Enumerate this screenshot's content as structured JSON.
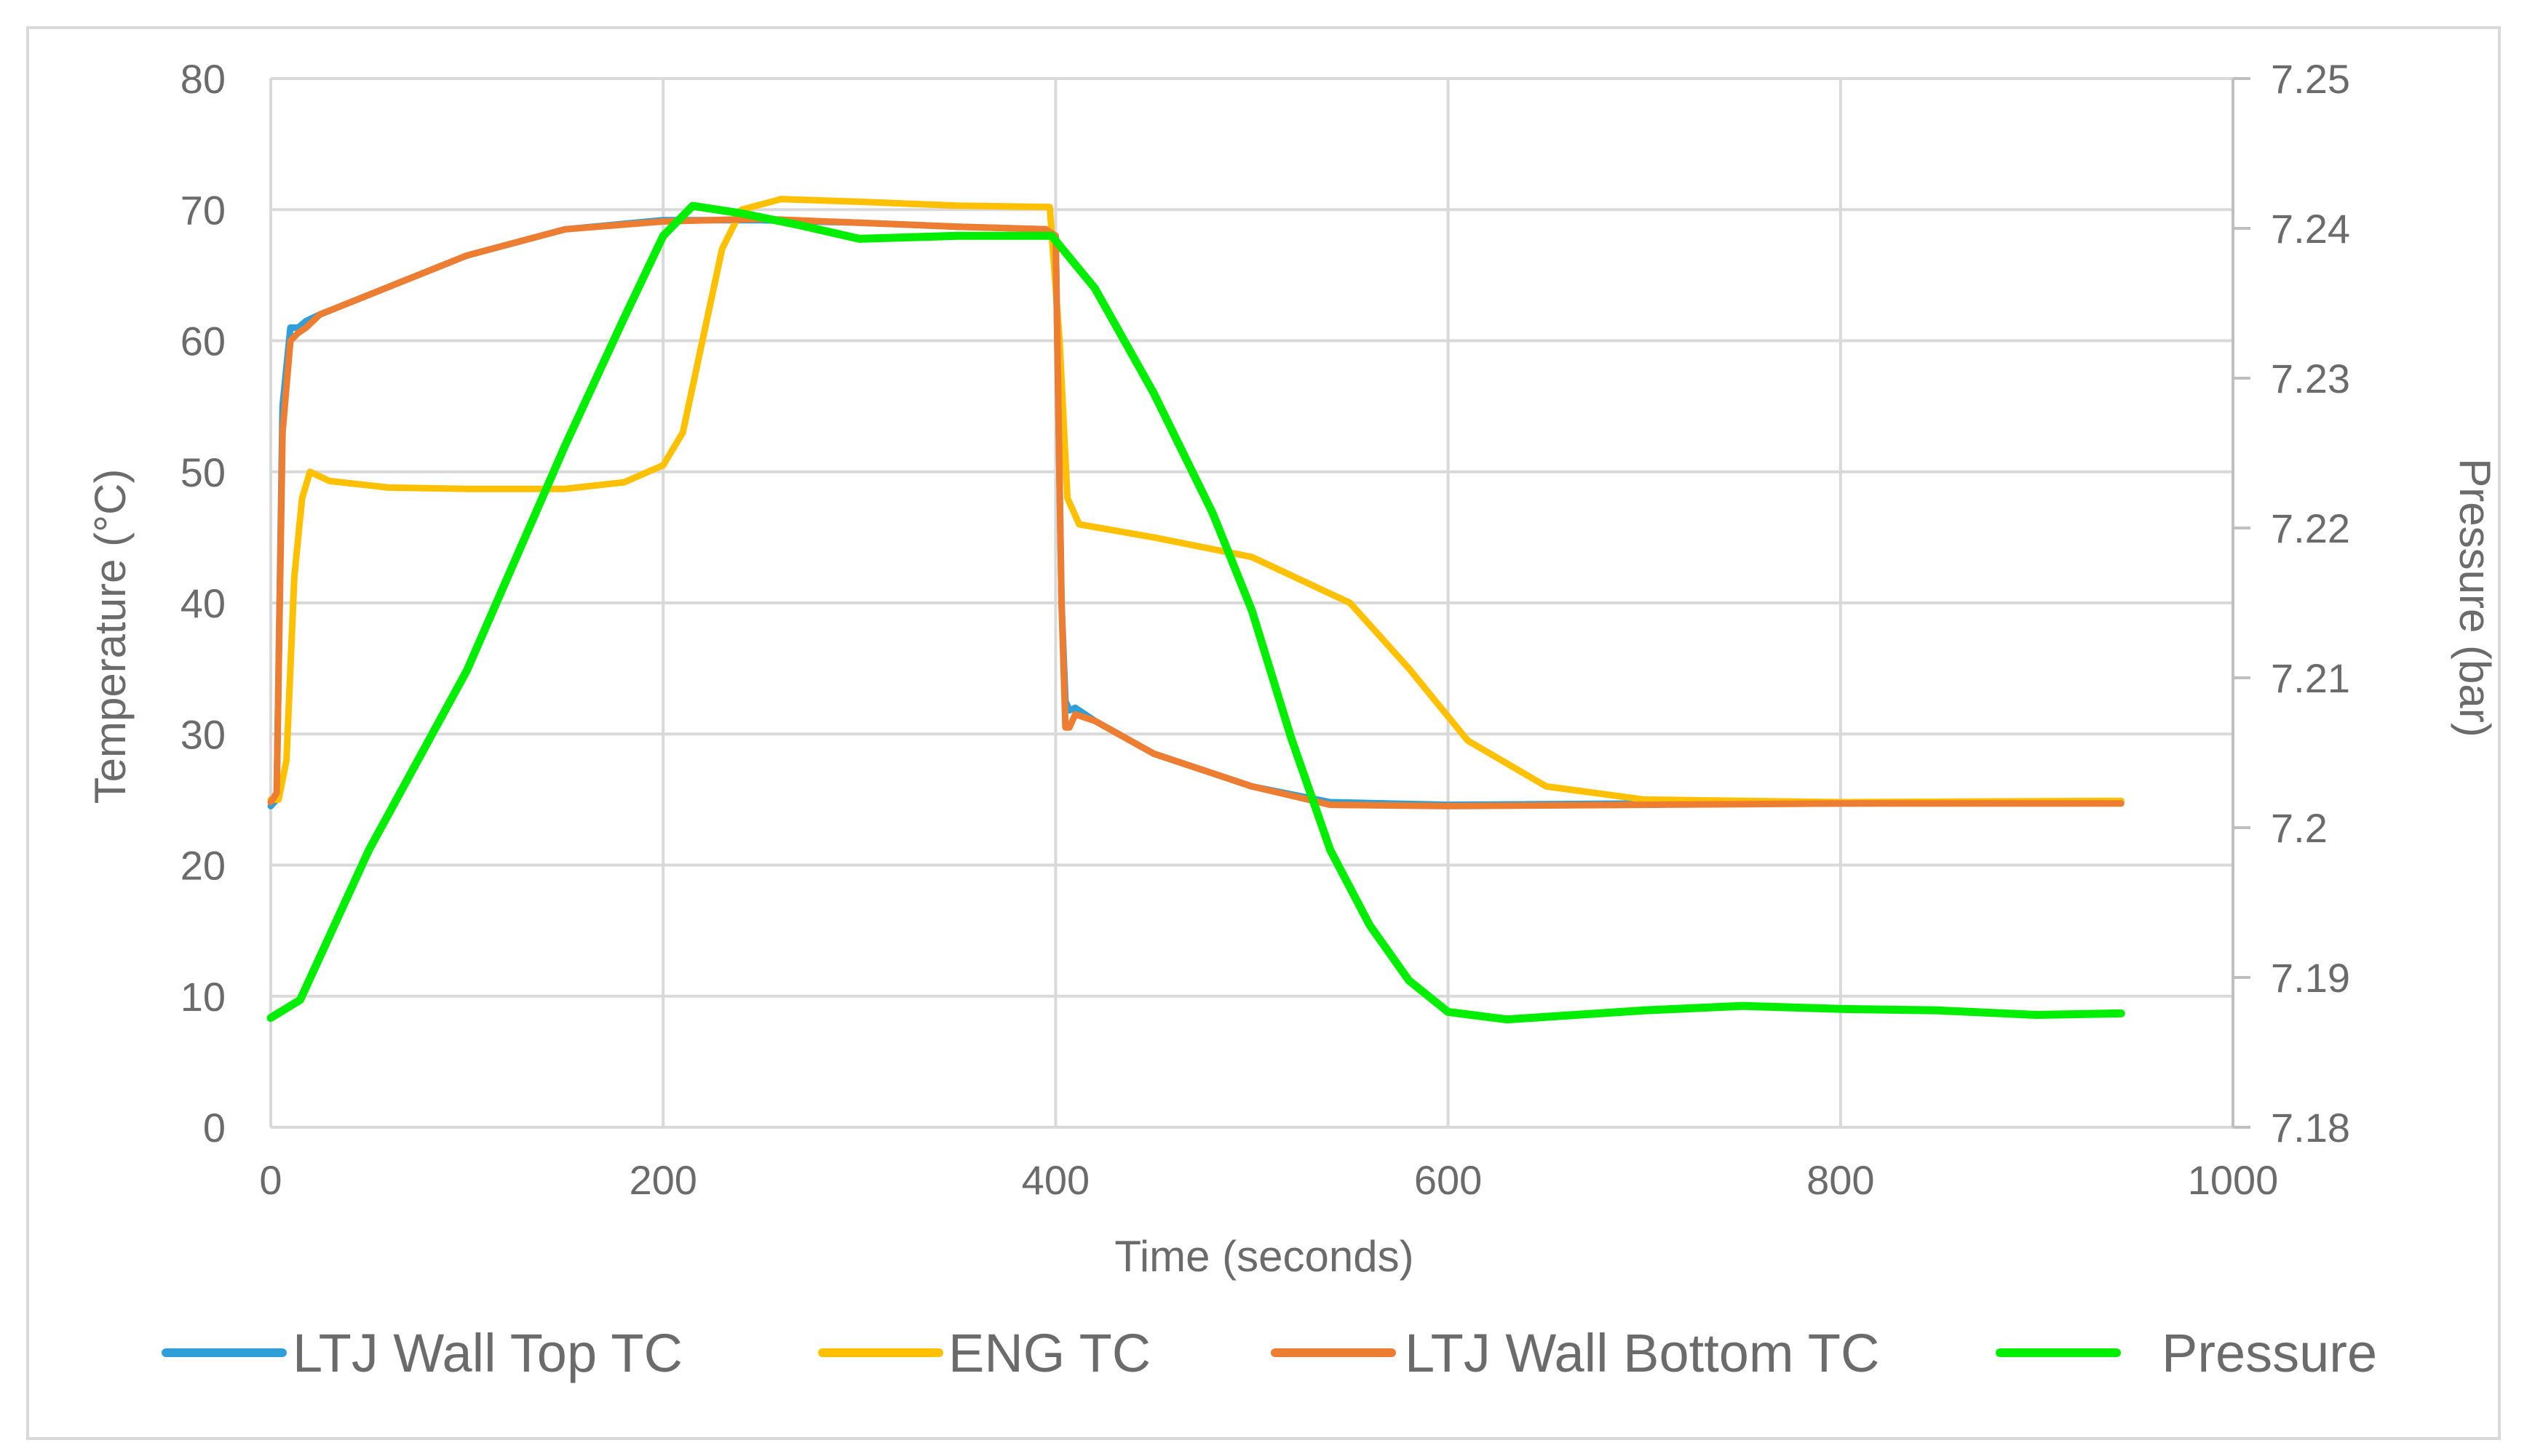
{
  "chart_data": {
    "type": "line",
    "title": "",
    "xlabel": "Time (seconds)",
    "ylabel": "Temperature (°C)",
    "y2label": "Pressure (bar)",
    "xlim": [
      0,
      1000
    ],
    "ylim": [
      0,
      80
    ],
    "y2lim": [
      7.18,
      7.25
    ],
    "xticks": [
      0,
      200,
      400,
      600,
      800,
      1000
    ],
    "yticks": [
      0,
      10,
      20,
      30,
      40,
      50,
      60,
      70,
      80
    ],
    "y2ticks": [
      "7.18",
      "7.19",
      "7.2",
      "7.21",
      "7.22",
      "7.23",
      "7.24",
      "7.25"
    ],
    "y2tick_values": [
      7.18,
      7.19,
      7.2,
      7.21,
      7.22,
      7.23,
      7.24,
      7.25
    ],
    "grid": true,
    "legend_position": "bottom",
    "series": [
      {
        "name": "LTJ Wall Top TC",
        "color": "#2e9fd8",
        "axis": "left",
        "points": [
          [
            0,
            24.5
          ],
          [
            3,
            25
          ],
          [
            6,
            55
          ],
          [
            10,
            61
          ],
          [
            14,
            61
          ],
          [
            18,
            61.5
          ],
          [
            25,
            62
          ],
          [
            50,
            63.5
          ],
          [
            100,
            66.5
          ],
          [
            150,
            68.5
          ],
          [
            200,
            69.2
          ],
          [
            250,
            69.2
          ],
          [
            300,
            69
          ],
          [
            350,
            68.7
          ],
          [
            395,
            68.5
          ],
          [
            400,
            68
          ],
          [
            403,
            40
          ],
          [
            405,
            32.5
          ],
          [
            407,
            31.8
          ],
          [
            410,
            32
          ],
          [
            420,
            31
          ],
          [
            450,
            28.5
          ],
          [
            500,
            26
          ],
          [
            540,
            24.8
          ],
          [
            600,
            24.6
          ],
          [
            700,
            24.7
          ],
          [
            800,
            24.7
          ],
          [
            943,
            24.8
          ]
        ]
      },
      {
        "name": "ENG TC",
        "color": "#ffc000",
        "axis": "left",
        "points": [
          [
            0,
            25
          ],
          [
            4,
            25
          ],
          [
            8,
            28
          ],
          [
            12,
            42
          ],
          [
            16,
            48
          ],
          [
            20,
            50
          ],
          [
            30,
            49.3
          ],
          [
            60,
            48.8
          ],
          [
            100,
            48.7
          ],
          [
            150,
            48.7
          ],
          [
            180,
            49.2
          ],
          [
            200,
            50.5
          ],
          [
            210,
            53
          ],
          [
            220,
            60
          ],
          [
            230,
            67
          ],
          [
            240,
            70
          ],
          [
            260,
            70.8
          ],
          [
            300,
            70.6
          ],
          [
            350,
            70.3
          ],
          [
            397,
            70.2
          ],
          [
            402,
            60
          ],
          [
            406,
            48
          ],
          [
            412,
            46
          ],
          [
            450,
            45
          ],
          [
            500,
            43.5
          ],
          [
            550,
            40
          ],
          [
            580,
            35
          ],
          [
            610,
            29.5
          ],
          [
            650,
            26
          ],
          [
            700,
            25
          ],
          [
            800,
            24.8
          ],
          [
            943,
            24.9
          ]
        ]
      },
      {
        "name": "LTJ Wall Bottom TC",
        "color": "#ed7d31",
        "axis": "left",
        "points": [
          [
            0,
            24.8
          ],
          [
            3,
            25.5
          ],
          [
            6,
            53
          ],
          [
            10,
            60
          ],
          [
            14,
            60.6
          ],
          [
            18,
            61
          ],
          [
            25,
            62
          ],
          [
            50,
            63.5
          ],
          [
            100,
            66.5
          ],
          [
            150,
            68.5
          ],
          [
            200,
            69.1
          ],
          [
            250,
            69.3
          ],
          [
            300,
            69
          ],
          [
            350,
            68.7
          ],
          [
            395,
            68.5
          ],
          [
            400,
            68
          ],
          [
            403,
            40
          ],
          [
            405,
            30.5
          ],
          [
            407,
            30.5
          ],
          [
            410,
            31.5
          ],
          [
            420,
            31
          ],
          [
            450,
            28.5
          ],
          [
            500,
            26
          ],
          [
            540,
            24.6
          ],
          [
            600,
            24.5
          ],
          [
            700,
            24.6
          ],
          [
            800,
            24.7
          ],
          [
            943,
            24.7
          ]
        ]
      },
      {
        "name": "Pressure",
        "color": "#00ee00",
        "axis": "right",
        "points": [
          [
            0,
            7.1873
          ],
          [
            15,
            7.1885
          ],
          [
            50,
            7.1985
          ],
          [
            100,
            7.2105
          ],
          [
            150,
            7.2255
          ],
          [
            180,
            7.234
          ],
          [
            200,
            7.2395
          ],
          [
            215,
            7.2415
          ],
          [
            240,
            7.241
          ],
          [
            270,
            7.2402
          ],
          [
            300,
            7.2393
          ],
          [
            350,
            7.2395
          ],
          [
            398,
            7.2395
          ],
          [
            420,
            7.236
          ],
          [
            450,
            7.229
          ],
          [
            480,
            7.221
          ],
          [
            500,
            7.2145
          ],
          [
            520,
            7.206
          ],
          [
            540,
            7.1985
          ],
          [
            560,
            7.1935
          ],
          [
            580,
            7.1898
          ],
          [
            600,
            7.1877
          ],
          [
            630,
            7.1872
          ],
          [
            700,
            7.1878
          ],
          [
            750,
            7.1881
          ],
          [
            800,
            7.1879
          ],
          [
            850,
            7.1878
          ],
          [
            900,
            7.1875
          ],
          [
            943,
            7.1876
          ]
        ]
      }
    ]
  }
}
